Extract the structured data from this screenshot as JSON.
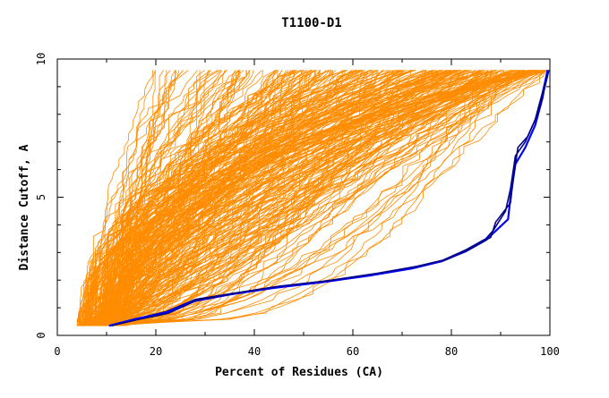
{
  "chart_data": {
    "type": "line",
    "title": "T1100-D1",
    "xlabel": "Percent of Residues (CA)",
    "ylabel": "Distance Cutoff, A",
    "xlim": [
      0,
      100
    ],
    "ylim": [
      0,
      10
    ],
    "x_ticks": [
      "0",
      "20",
      "40",
      "60",
      "80",
      "100"
    ],
    "y_ticks": [
      "0",
      "5",
      "10"
    ],
    "grid": false,
    "colors": {
      "bundle": "#ff8c00",
      "highlight_dark": "#000080",
      "highlight_blue": "#0000ff",
      "axis": "#000000"
    },
    "series": [
      {
        "role": "highlight",
        "color": "#000080",
        "x": [
          10.5,
          16,
          22,
          28,
          35,
          44,
          54,
          64,
          72,
          78,
          83,
          87,
          88.5,
          91,
          92,
          93,
          95,
          97,
          98.5,
          99.5
        ],
        "y": [
          0.35,
          0.6,
          0.85,
          1.3,
          1.5,
          1.75,
          1.95,
          2.2,
          2.45,
          2.7,
          3.1,
          3.5,
          3.8,
          4.5,
          5.3,
          6.5,
          7.0,
          7.8,
          8.8,
          9.6
        ]
      },
      {
        "role": "highlight",
        "color": "#0000ff",
        "x": [
          10.5,
          16,
          22,
          28,
          35,
          44,
          54,
          64,
          72,
          78,
          83,
          87,
          88.5,
          91.5,
          92,
          93,
          95,
          97,
          98.5,
          99.5
        ],
        "y": [
          0.35,
          0.6,
          0.82,
          1.25,
          1.48,
          1.72,
          1.93,
          2.18,
          2.42,
          2.68,
          3.05,
          3.45,
          3.7,
          4.2,
          5.0,
          6.2,
          6.8,
          7.6,
          8.6,
          9.6
        ]
      },
      {
        "role": "highlight",
        "color": "#000080",
        "x": [
          11,
          16.5,
          22.5,
          28.5,
          36,
          45,
          55,
          65,
          73,
          79,
          84,
          88,
          89,
          92,
          92.5,
          93.5,
          95.5,
          97.5,
          99,
          99.8
        ],
        "y": [
          0.35,
          0.58,
          0.8,
          1.28,
          1.52,
          1.78,
          1.98,
          2.25,
          2.5,
          2.75,
          3.15,
          3.55,
          4.1,
          4.8,
          5.6,
          6.8,
          7.2,
          8.0,
          9.0,
          9.6
        ]
      }
    ]
  }
}
